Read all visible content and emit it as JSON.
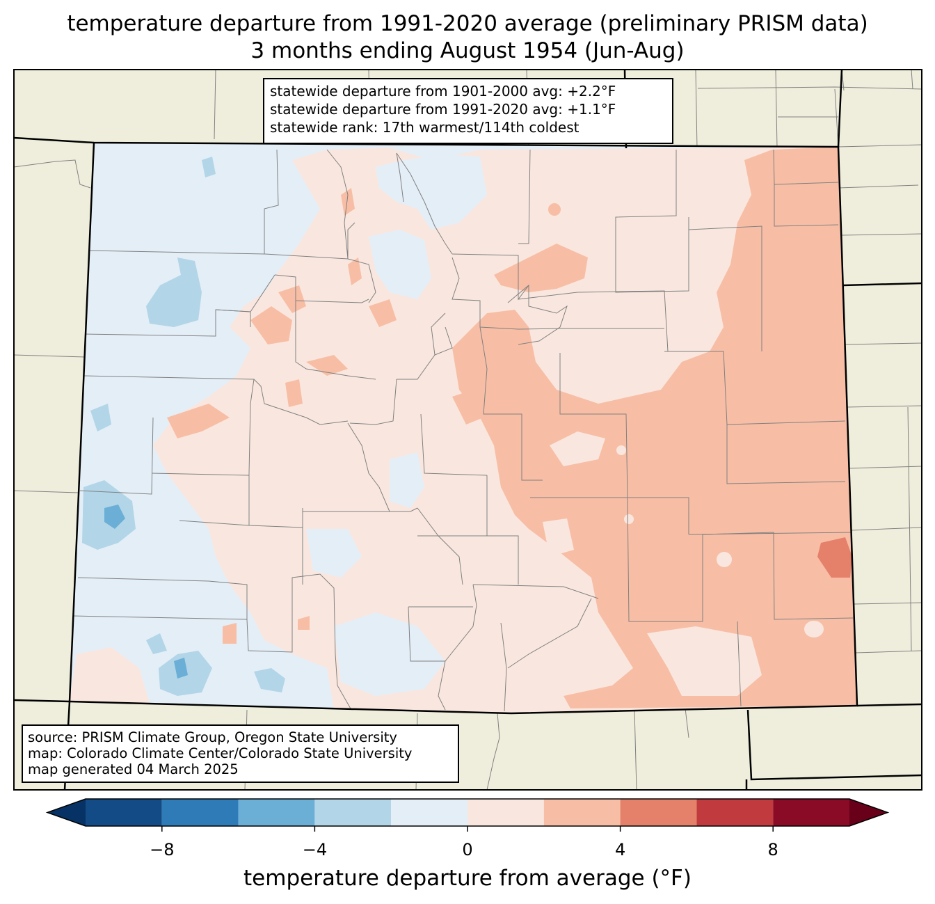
{
  "title_line1": "temperature departure from 1991-2020 average (preliminary PRISM data)",
  "title_line2": "3 months ending August 1954 (Jun-Aug)",
  "stats": {
    "line1": "statewide departure from 1901-2000 avg: +2.2°F",
    "line2": "statewide departure from 1991-2020 avg: +1.1°F",
    "line3": "statewide rank: 17th warmest/114th coldest"
  },
  "source": {
    "line1": "source: PRISM Climate Group, Oregon State University",
    "line2": "map: Colorado Climate Center/Colorado State University",
    "line3": "map generated 04 March 2025"
  },
  "colorbar": {
    "label": "temperature departure from average (°F)",
    "bins": [
      {
        "from": -10,
        "to": -8,
        "color": "#134b86"
      },
      {
        "from": -8,
        "to": -6,
        "color": "#2f7bb8"
      },
      {
        "from": -6,
        "to": -4,
        "color": "#6baed6"
      },
      {
        "from": -4,
        "to": -2,
        "color": "#b2d5e8"
      },
      {
        "from": -2,
        "to": 0,
        "color": "#e4eef7"
      },
      {
        "from": 0,
        "to": 2,
        "color": "#f9e7df"
      },
      {
        "from": 2,
        "to": 4,
        "color": "#f7bea5"
      },
      {
        "from": 4,
        "to": 6,
        "color": "#e5806a"
      },
      {
        "from": 6,
        "to": 8,
        "color": "#c13a3d"
      },
      {
        "from": 8,
        "to": 10,
        "color": "#8a0b25"
      }
    ],
    "under_color": "#063266",
    "over_color": "#680019",
    "ticks": [
      {
        "value": -8,
        "label": "−8"
      },
      {
        "value": -4,
        "label": "−4"
      },
      {
        "value": 0,
        "label": "0"
      },
      {
        "value": 4,
        "label": "4"
      },
      {
        "value": 8,
        "label": "8"
      }
    ]
  },
  "colors": {
    "land_background": "#efeedc",
    "county_lines": "#808080",
    "state_lines": "#000000"
  }
}
